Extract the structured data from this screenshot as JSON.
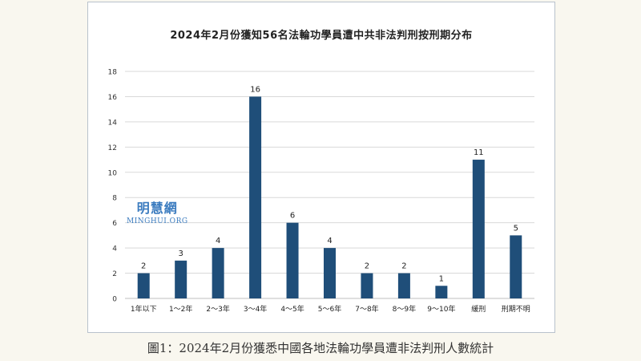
{
  "title": "2024年2月份獲知56名法輪功學員遭中共非法判刑按刑期分布",
  "caption": "圖1：2024年2月份獲悉中國各地法輪功學員遭非法判刑人數統計",
  "watermark": {
    "logo": "明慧網",
    "site": "MINGHUI.ORG"
  },
  "colors": {
    "bar": "#1f4e79",
    "grid": "#d9d9d9",
    "background": "#f9f7ef"
  },
  "chart_data": {
    "type": "bar",
    "title": "2024年2月份獲知56名法輪功學員遭中共非法判刑按刑期分布",
    "xlabel": "",
    "ylabel": "",
    "categories": [
      "1年以下",
      "1～2年",
      "2～3年",
      "3～4年",
      "4～5年",
      "5～6年",
      "7～8年",
      "8～9年",
      "9～10年",
      "緩刑",
      "刑期不明"
    ],
    "values": [
      2,
      3,
      4,
      16,
      6,
      4,
      2,
      2,
      1,
      11,
      5
    ],
    "ylim": [
      0,
      18
    ],
    "yticks": [
      0,
      2,
      4,
      6,
      8,
      10,
      12,
      14,
      16,
      18
    ],
    "grid": true,
    "data_labels": true
  }
}
